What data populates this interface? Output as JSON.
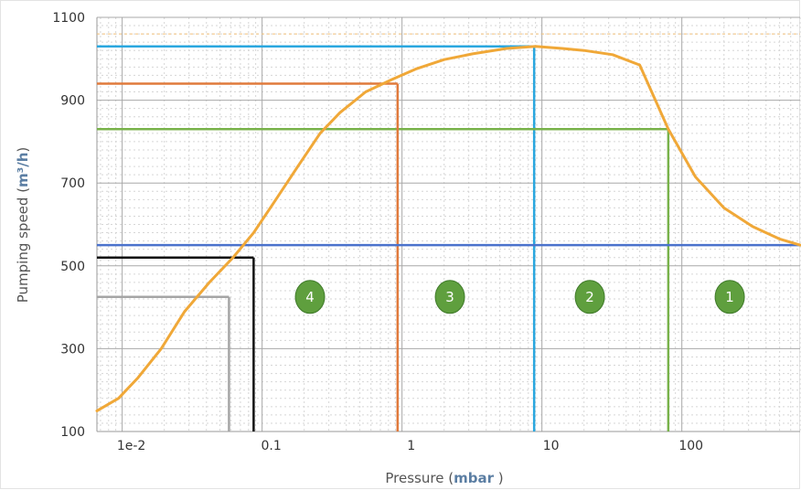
{
  "chart_data": {
    "type": "line",
    "x_scale": "log",
    "xlim": [
      0.0066,
      700
    ],
    "ylim": [
      100,
      1100
    ],
    "xlabel": "Pressure",
    "xlabel_unit": "mbar",
    "ylabel": "Pumping speed",
    "ylabel_unit": "m³/h",
    "x_ticks": [
      {
        "value": 0.01,
        "label": "1e-2"
      },
      {
        "value": 0.1,
        "label": "0.1"
      },
      {
        "value": 1,
        "label": "1"
      },
      {
        "value": 10,
        "label": "10"
      },
      {
        "value": 100,
        "label": "100"
      }
    ],
    "y_ticks": [
      {
        "value": 100,
        "label": "100"
      },
      {
        "value": 300,
        "label": "300"
      },
      {
        "value": 500,
        "label": "500"
      },
      {
        "value": 700,
        "label": "700"
      },
      {
        "value": 900,
        "label": "900"
      },
      {
        "value": 1100,
        "label": "1100"
      }
    ],
    "grid": true,
    "series": [
      {
        "color": "#f0a838",
        "x": [
          0.0066,
          0.0094,
          0.013,
          0.019,
          0.028,
          0.042,
          0.062,
          0.087,
          0.12,
          0.18,
          0.26,
          0.36,
          0.55,
          0.85,
          1.25,
          2.0,
          3.2,
          5.6,
          9.0,
          14,
          20,
          32,
          50,
          80,
          125,
          200,
          320,
          500,
          700
        ],
        "y": [
          150,
          180,
          230,
          300,
          390,
          460,
          520,
          580,
          650,
          740,
          820,
          870,
          920,
          950,
          975,
          998,
          1012,
          1025,
          1030,
          1025,
          1020,
          1010,
          985,
          830,
          715,
          640,
          595,
          565,
          550
        ]
      }
    ],
    "reference_lines": [
      {
        "name": "blue-guide",
        "color": "#2aa7df",
        "x": 8.8,
        "y": 1030
      },
      {
        "name": "green-guide",
        "color": "#78b24a",
        "x": 80,
        "y": 830
      },
      {
        "name": "orange-guide",
        "color": "#e07a3c",
        "x": 0.93,
        "y": 940
      },
      {
        "name": "black-guide",
        "color": "#111111",
        "x": 0.087,
        "y": 520
      },
      {
        "name": "gray-guide",
        "color": "#a5a5a5",
        "x": 0.058,
        "y": 425
      },
      {
        "name": "baseline",
        "color": "#4a72cc",
        "y": 550
      }
    ],
    "zones": [
      {
        "label": "4",
        "x": 0.22,
        "y": 425
      },
      {
        "label": "3",
        "x": 2.2,
        "y": 425
      },
      {
        "label": "2",
        "x": 22,
        "y": 425
      },
      {
        "label": "1",
        "x": 220,
        "y": 425
      }
    ]
  }
}
